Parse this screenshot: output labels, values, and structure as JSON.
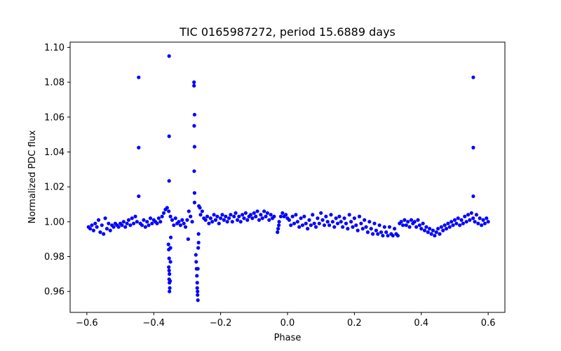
{
  "chart_data": {
    "type": "scatter",
    "title": "TIC 0165987272, period 15.6889 days",
    "xlabel": "Phase",
    "ylabel": "Normalized PDC flux",
    "xlim": [
      -0.65,
      0.65
    ],
    "ylim": [
      0.948,
      1.103
    ],
    "xticks": [
      -0.6,
      -0.4,
      -0.2,
      0.0,
      0.2,
      0.4,
      0.6
    ],
    "xtick_labels": [
      "−0.6",
      "−0.4",
      "−0.2",
      "0.0",
      "0.2",
      "0.4",
      "0.6"
    ],
    "yticks": [
      0.96,
      0.98,
      1.0,
      1.02,
      1.04,
      1.06,
      1.08,
      1.1
    ],
    "ytick_labels": [
      "0.96",
      "0.98",
      "1.00",
      "1.02",
      "1.04",
      "1.06",
      "1.08",
      "1.10"
    ],
    "grid": false,
    "marker_color": "#0000ff",
    "series": [
      {
        "points": [
          [
            -0.595,
            0.997
          ],
          [
            -0.59,
            0.996
          ],
          [
            -0.585,
            0.998
          ],
          [
            -0.58,
            0.995
          ],
          [
            -0.575,
            0.999
          ],
          [
            -0.57,
            0.997
          ],
          [
            -0.565,
            1.001
          ],
          [
            -0.56,
            0.994
          ],
          [
            -0.555,
            0.998
          ],
          [
            -0.55,
            0.993
          ],
          [
            -0.545,
            1.002
          ],
          [
            -0.54,
            0.996
          ],
          [
            -0.535,
            0.999
          ],
          [
            -0.53,
            0.995
          ],
          [
            -0.525,
            0.998
          ],
          [
            -0.52,
            0.997
          ],
          [
            -0.515,
            0.999
          ],
          [
            -0.51,
            0.998
          ],
          [
            -0.505,
            0.997
          ],
          [
            -0.5,
            0.999
          ],
          [
            -0.495,
            0.998
          ],
          [
            -0.49,
            1.0
          ],
          [
            -0.485,
            0.997
          ],
          [
            -0.48,
            0.999
          ],
          [
            -0.475,
            1.001
          ],
          [
            -0.47,
            0.998
          ],
          [
            -0.465,
            1.002
          ],
          [
            -0.46,
            0.999
          ],
          [
            -0.455,
            1.003
          ],
          [
            -0.45,
            1.0
          ],
          [
            -0.445,
            1.0828
          ],
          [
            -0.445,
            1.0425
          ],
          [
            -0.445,
            1.0146
          ],
          [
            -0.44,
            0.999
          ],
          [
            -0.435,
            0.998
          ],
          [
            -0.43,
            1.001
          ],
          [
            -0.425,
            0.997
          ],
          [
            -0.42,
            1.0
          ],
          [
            -0.415,
            0.998
          ],
          [
            -0.41,
            1.002
          ],
          [
            -0.405,
            0.999
          ],
          [
            -0.4,
            1.001
          ],
          [
            -0.395,
            1.0
          ],
          [
            -0.39,
            0.999
          ],
          [
            -0.385,
            1.002
          ],
          [
            -0.38,
            1.0
          ],
          [
            -0.375,
            1.003
          ],
          [
            -0.37,
            1.005
          ],
          [
            -0.365,
            1.007
          ],
          [
            -0.36,
            1.008
          ],
          [
            -0.355,
            1.006
          ],
          [
            -0.35,
            1.003
          ],
          [
            -0.354,
            1.095
          ],
          [
            -0.354,
            1.049
          ],
          [
            -0.354,
            1.0234
          ],
          [
            -0.356,
            0.987
          ],
          [
            -0.355,
            0.984
          ],
          [
            -0.354,
            0.979
          ],
          [
            -0.355,
            0.974
          ],
          [
            -0.354,
            0.972
          ],
          [
            -0.353,
            0.97
          ],
          [
            -0.354,
            0.967
          ],
          [
            -0.353,
            0.965
          ],
          [
            -0.352,
            0.962
          ],
          [
            -0.353,
            0.96
          ],
          [
            -0.351,
            0.966
          ],
          [
            -0.35,
            0.977
          ],
          [
            -0.35,
            0.985
          ],
          [
            -0.349,
            0.991
          ],
          [
            -0.345,
            1.001
          ],
          [
            -0.34,
            0.998
          ],
          [
            -0.335,
            1.002
          ],
          [
            -0.33,
            0.999
          ],
          [
            -0.325,
            1.0
          ],
          [
            -0.32,
            0.998
          ],
          [
            -0.315,
            1.001
          ],
          [
            -0.31,
            0.999
          ],
          [
            -0.305,
            0.997
          ],
          [
            -0.3,
            1.001
          ],
          [
            -0.297,
            0.99
          ],
          [
            -0.295,
            1.006
          ],
          [
            -0.29,
            1.003
          ],
          [
            -0.285,
            1.0
          ],
          [
            -0.2795,
            1.08
          ],
          [
            -0.2795,
            1.078
          ],
          [
            -0.278,
            1.0614
          ],
          [
            -0.279,
            1.055
          ],
          [
            -0.278,
            1.043
          ],
          [
            -0.279,
            1.029
          ],
          [
            -0.278,
            1.0165
          ],
          [
            -0.278,
            1.011
          ],
          [
            -0.274,
            0.981
          ],
          [
            -0.273,
            0.977
          ],
          [
            -0.272,
            0.973
          ],
          [
            -0.271,
            0.969
          ],
          [
            -0.27,
            0.965
          ],
          [
            -0.27,
            0.962
          ],
          [
            -0.269,
            0.96
          ],
          [
            -0.269,
            0.958
          ],
          [
            -0.268,
            0.955
          ],
          [
            -0.268,
            0.973
          ],
          [
            -0.267,
            0.985
          ],
          [
            -0.266,
            0.988
          ],
          [
            -0.266,
            0.993
          ],
          [
            -0.265,
            1.009
          ],
          [
            -0.262,
            1.008
          ],
          [
            -0.26,
            1.004
          ],
          [
            -0.255,
            1.006
          ],
          [
            -0.25,
            1.002
          ],
          [
            -0.245,
            1.001
          ],
          [
            -0.24,
            1.003
          ],
          [
            -0.235,
            0.999
          ],
          [
            -0.23,
            1.002
          ],
          [
            -0.225,
            1.0
          ],
          [
            -0.22,
            1.004
          ],
          [
            -0.215,
            1.001
          ],
          [
            -0.21,
            1.003
          ],
          [
            -0.205,
            0.999
          ],
          [
            -0.2,
            1.002
          ],
          [
            -0.195,
            1.004
          ],
          [
            -0.19,
            1.001
          ],
          [
            -0.185,
            1.003
          ],
          [
            -0.18,
            1.0
          ],
          [
            -0.175,
            1.002
          ],
          [
            -0.17,
            1.004
          ],
          [
            -0.165,
            1.0
          ],
          [
            -0.16,
            1.003
          ],
          [
            -0.155,
            1.005
          ],
          [
            -0.15,
            1.001
          ],
          [
            -0.145,
            1.003
          ],
          [
            -0.14,
            1.0
          ],
          [
            -0.135,
            1.004
          ],
          [
            -0.13,
            1.002
          ],
          [
            -0.125,
            1.005
          ],
          [
            -0.12,
            1.001
          ],
          [
            -0.115,
            1.003
          ],
          [
            -0.11,
            1.004
          ],
          [
            -0.105,
            1.002
          ],
          [
            -0.1,
            1.005
          ],
          [
            -0.095,
            1.003
          ],
          [
            -0.09,
            1.006
          ],
          [
            -0.085,
            1.001
          ],
          [
            -0.08,
            1.004
          ],
          [
            -0.075,
            1.002
          ],
          [
            -0.07,
            1.006
          ],
          [
            -0.065,
            1.003
          ],
          [
            -0.06,
            1.005
          ],
          [
            -0.055,
            1.001
          ],
          [
            -0.05,
            1.004
          ],
          [
            -0.045,
            1.002
          ],
          [
            -0.04,
            1.003
          ],
          [
            -0.03,
            0.994
          ],
          [
            -0.028,
            0.996
          ],
          [
            -0.026,
            0.998
          ],
          [
            -0.025,
            1.0
          ],
          [
            -0.02,
            1.003
          ],
          [
            -0.015,
            1.005
          ],
          [
            -0.01,
            1.003
          ],
          [
            -0.005,
            1.004
          ],
          [
            0.0,
            1.002
          ],
          [
            0.005,
            1.001
          ],
          [
            0.01,
            0.998
          ],
          [
            0.015,
            1.003
          ],
          [
            0.02,
            0.999
          ],
          [
            0.025,
            1.004
          ],
          [
            0.03,
            1.0
          ],
          [
            0.035,
            0.997
          ],
          [
            0.04,
            1.002
          ],
          [
            0.045,
            0.998
          ],
          [
            0.05,
            1.003
          ],
          [
            0.055,
            0.999
          ],
          [
            0.06,
            0.996
          ],
          [
            0.065,
            1.001
          ],
          [
            0.07,
            0.998
          ],
          [
            0.075,
            1.004
          ],
          [
            0.08,
            0.999
          ],
          [
            0.085,
            0.997
          ],
          [
            0.09,
            1.002
          ],
          [
            0.095,
            0.999
          ],
          [
            0.1,
            1.005
          ],
          [
            0.105,
            1.001
          ],
          [
            0.11,
            0.998
          ],
          [
            0.115,
            1.003
          ],
          [
            0.12,
            1.0
          ],
          [
            0.125,
            0.998
          ],
          [
            0.13,
            1.004
          ],
          [
            0.135,
            1.0
          ],
          [
            0.14,
            0.997
          ],
          [
            0.145,
            1.002
          ],
          [
            0.15,
            0.999
          ],
          [
            0.155,
            1.003
          ],
          [
            0.16,
            1.0
          ],
          [
            0.165,
            0.997
          ],
          [
            0.17,
            1.002
          ],
          [
            0.175,
            0.999
          ],
          [
            0.18,
            0.996
          ],
          [
            0.185,
            1.004
          ],
          [
            0.19,
            1.0
          ],
          [
            0.195,
            0.997
          ],
          [
            0.2,
            1.002
          ],
          [
            0.205,
            0.998
          ],
          [
            0.21,
            0.995
          ],
          [
            0.215,
            1.003
          ],
          [
            0.22,
            0.999
          ],
          [
            0.225,
            0.996
          ],
          [
            0.23,
            1.001
          ],
          [
            0.235,
            0.997
          ],
          [
            0.24,
            0.994
          ],
          [
            0.245,
            1.0
          ],
          [
            0.25,
            0.996
          ],
          [
            0.255,
            0.993
          ],
          [
            0.26,
            0.999
          ],
          [
            0.265,
            0.995
          ],
          [
            0.27,
            0.993
          ],
          [
            0.275,
            0.998
          ],
          [
            0.28,
            0.994
          ],
          [
            0.285,
            0.992
          ],
          [
            0.29,
            0.997
          ],
          [
            0.295,
            0.994
          ],
          [
            0.3,
            0.992
          ],
          [
            0.305,
            0.997
          ],
          [
            0.31,
            0.993
          ],
          [
            0.315,
            0.992
          ],
          [
            0.32,
            0.996
          ],
          [
            0.325,
            0.993
          ],
          [
            0.33,
            0.992
          ],
          [
            0.335,
            0.999
          ],
          [
            0.34,
            1.0
          ],
          [
            0.345,
            0.998
          ],
          [
            0.35,
            1.001
          ],
          [
            0.355,
            0.998
          ],
          [
            0.36,
            1.0
          ],
          [
            0.365,
            0.997
          ],
          [
            0.37,
            1.001
          ],
          [
            0.375,
            0.999
          ],
          [
            0.38,
            1.0
          ],
          [
            0.385,
            0.997
          ],
          [
            0.39,
            1.001
          ],
          [
            0.395,
            0.998
          ],
          [
            0.4,
            0.996
          ],
          [
            0.405,
            0.999
          ],
          [
            0.41,
            0.995
          ],
          [
            0.415,
            0.997
          ],
          [
            0.42,
            0.994
          ],
          [
            0.425,
            0.996
          ],
          [
            0.43,
            0.993
          ],
          [
            0.435,
            0.995
          ],
          [
            0.44,
            0.992
          ],
          [
            0.445,
            0.994
          ],
          [
            0.45,
            0.996
          ],
          [
            0.455,
            0.993
          ],
          [
            0.46,
            0.997
          ],
          [
            0.465,
            0.995
          ],
          [
            0.47,
            0.998
          ],
          [
            0.475,
            0.996
          ],
          [
            0.48,
            0.999
          ],
          [
            0.485,
            0.997
          ],
          [
            0.49,
            1.0
          ],
          [
            0.495,
            0.998
          ],
          [
            0.5,
            1.001
          ],
          [
            0.505,
            0.999
          ],
          [
            0.51,
            1.002
          ],
          [
            0.515,
            0.998
          ],
          [
            0.52,
            1.001
          ],
          [
            0.525,
            0.999
          ],
          [
            0.53,
            1.003
          ],
          [
            0.535,
            1.0
          ],
          [
            0.54,
            1.004
          ],
          [
            0.545,
            1.001
          ],
          [
            0.55,
            1.005
          ],
          [
            0.555,
            1.002
          ],
          [
            0.5555,
            1.0828
          ],
          [
            0.5555,
            1.0425
          ],
          [
            0.5555,
            1.0146
          ],
          [
            0.56,
            1.0
          ],
          [
            0.565,
            1.004
          ],
          [
            0.57,
            0.999
          ],
          [
            0.575,
            1.002
          ],
          [
            0.58,
            0.998
          ],
          [
            0.585,
            1.001
          ],
          [
            0.59,
            0.999
          ],
          [
            0.595,
            1.002
          ],
          [
            0.6,
            1.0
          ]
        ]
      }
    ]
  }
}
